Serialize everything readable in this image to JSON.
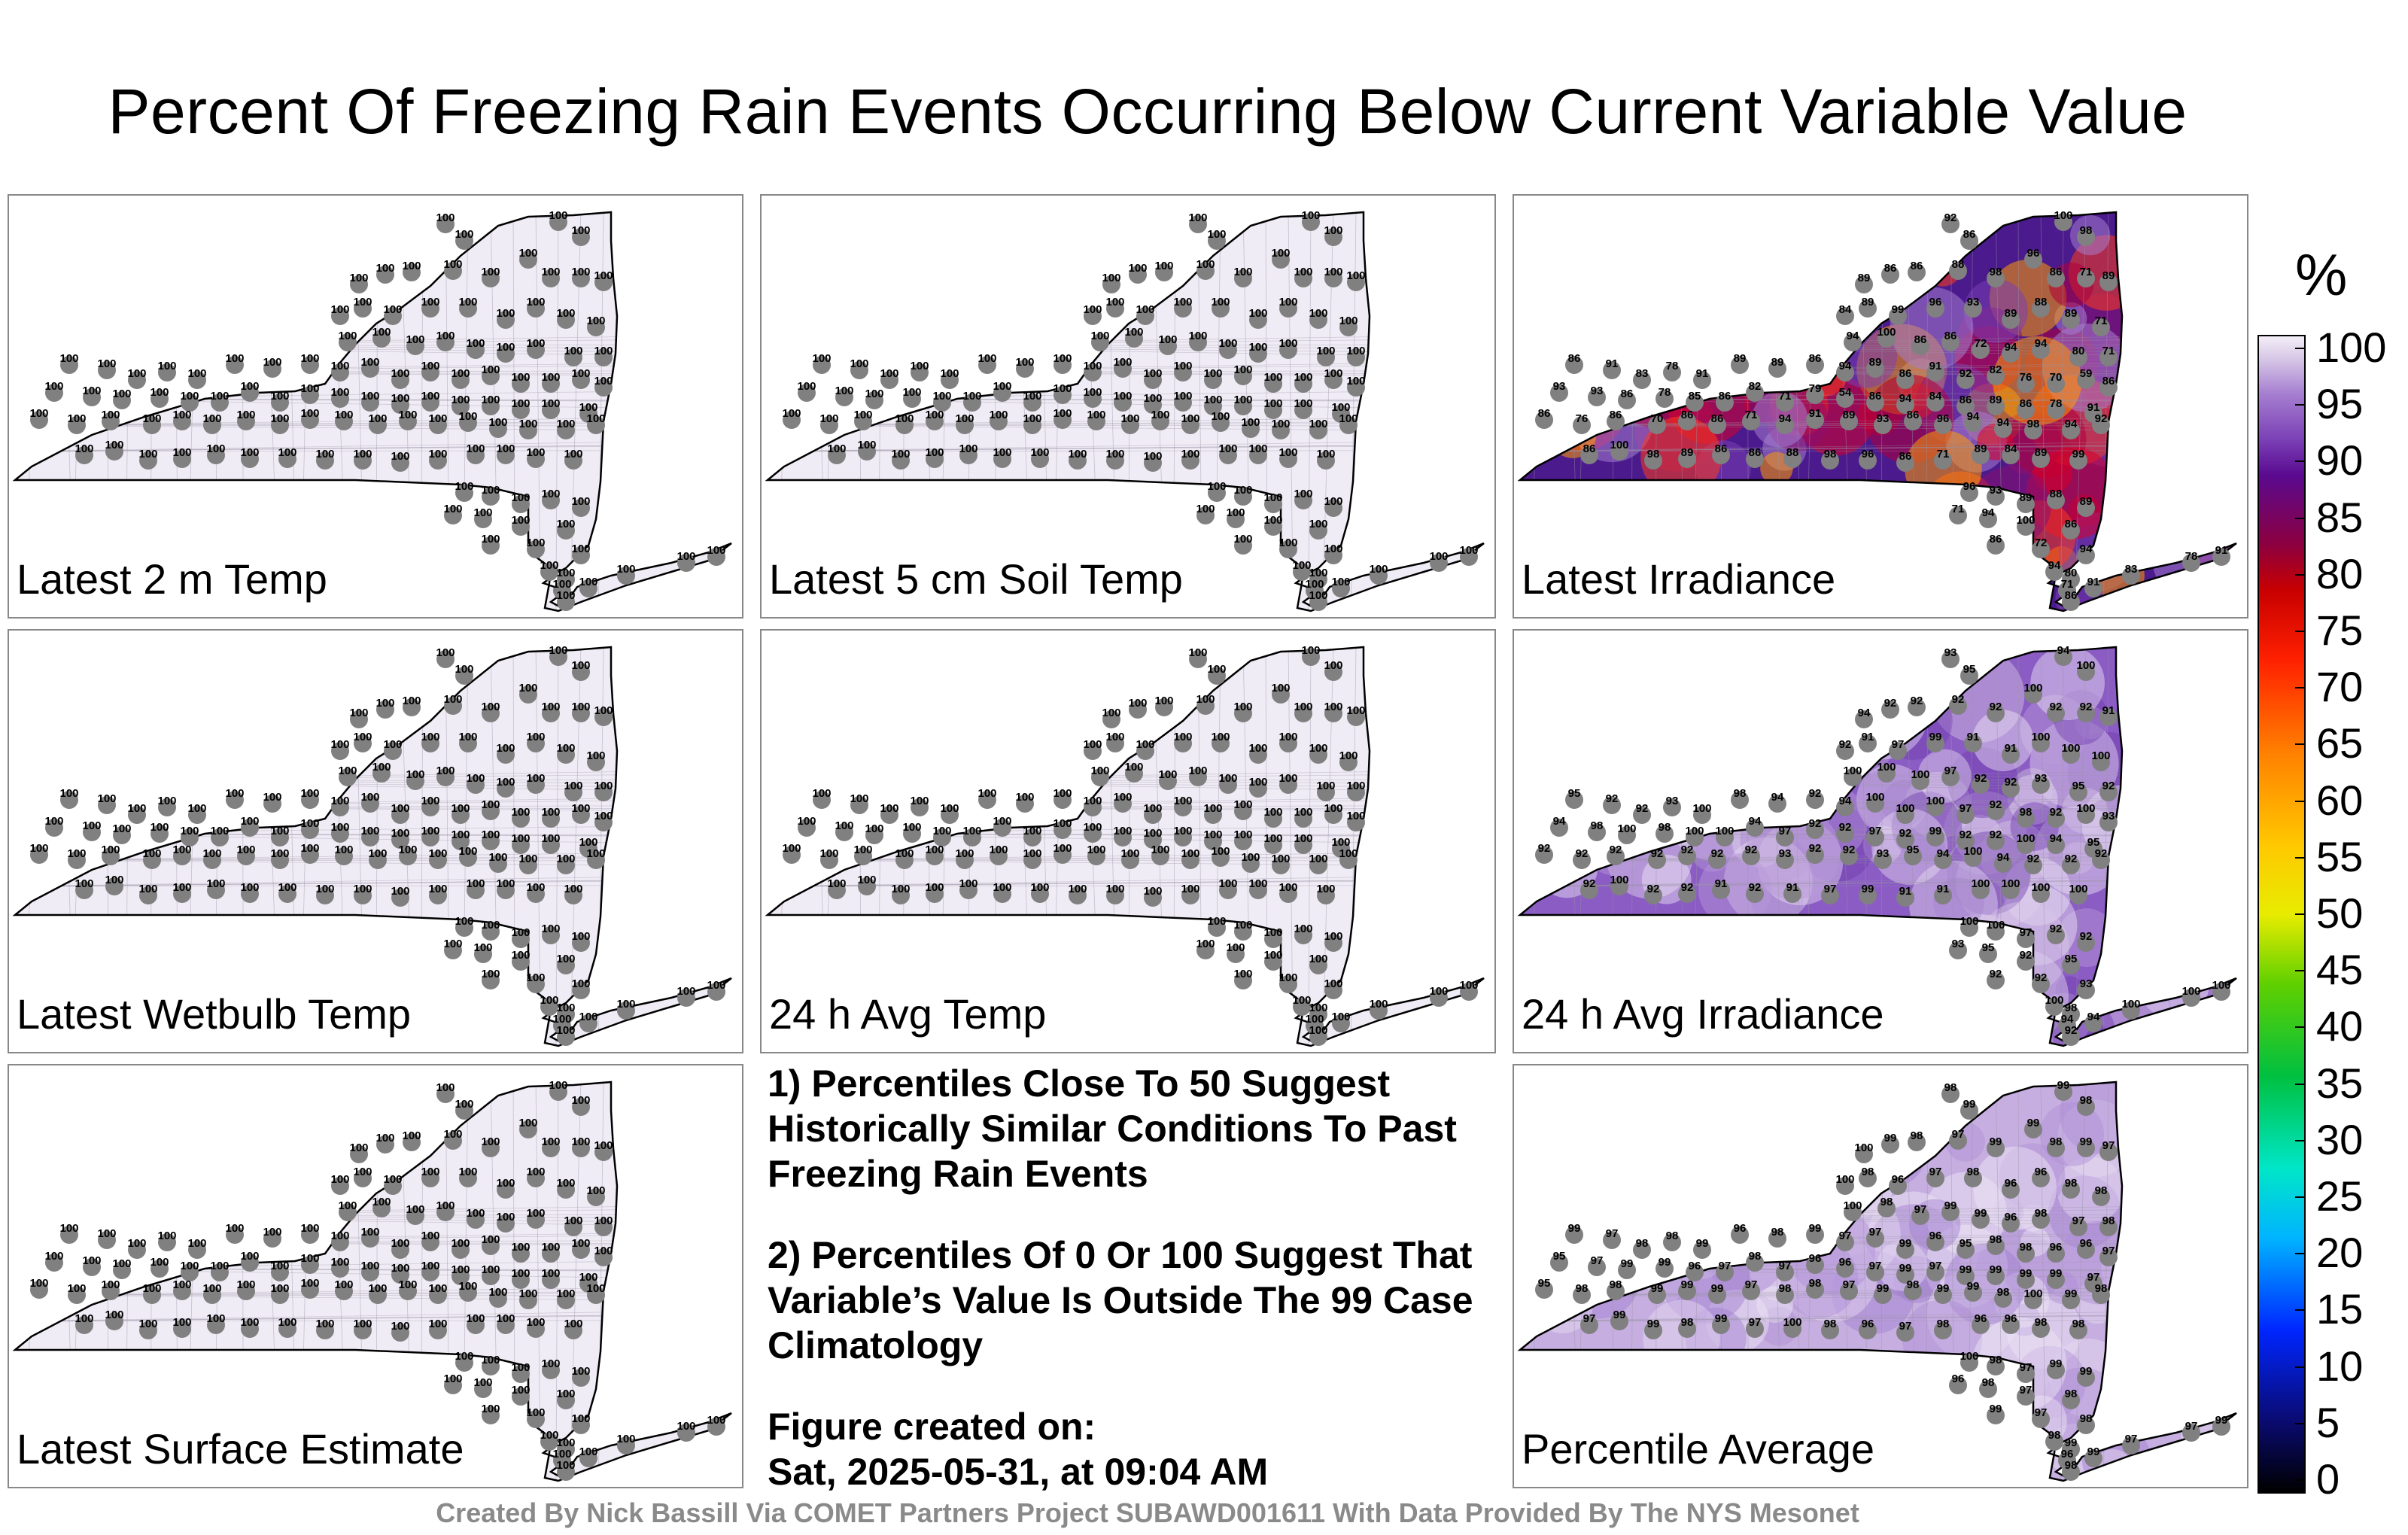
{
  "title": "Percent Of Freezing Rain Events Occurring Below Current Variable Value",
  "panels": [
    {
      "label": "Latest 2 m Temp",
      "theme": "flat",
      "values": [
        100
      ]
    },
    {
      "label": "Latest 5 cm Soil Temp",
      "theme": "flat",
      "values": [
        100
      ]
    },
    {
      "label": "Latest Irradiance",
      "theme": "hot",
      "values": [
        92,
        86,
        100,
        98,
        89,
        86,
        86,
        88,
        98,
        96,
        86,
        71,
        89,
        84,
        89,
        99,
        96,
        93,
        89,
        88,
        89,
        71,
        94,
        100,
        86,
        86,
        72,
        94,
        94,
        80,
        71,
        86,
        91,
        83,
        78,
        91,
        89,
        89,
        86,
        94,
        89,
        86,
        91,
        92,
        82,
        76,
        70,
        59,
        86,
        93,
        93,
        86,
        78,
        85,
        86,
        82,
        71,
        79,
        54,
        86,
        94,
        84,
        86,
        89,
        86,
        78,
        91,
        86,
        76,
        86,
        70,
        86,
        86,
        71,
        94,
        91,
        89,
        93,
        86,
        96,
        94,
        94,
        98,
        94
      ]
    },
    {
      "label": "Latest Wetbulb Temp",
      "theme": "flat",
      "values": [
        100
      ]
    },
    {
      "label": "24 h Avg Temp",
      "theme": "flat",
      "values": [
        100
      ]
    },
    {
      "label": "24 h Avg Irradiance",
      "theme": "mid",
      "values": [
        93,
        95,
        94,
        100,
        94,
        92,
        92,
        92,
        92,
        100,
        92,
        92,
        91,
        92,
        91,
        97,
        99,
        91,
        91,
        100,
        100,
        100,
        100,
        100,
        100,
        97,
        92,
        92,
        93,
        95,
        92,
        95,
        92,
        92,
        93,
        100,
        98,
        94,
        92,
        94,
        100,
        100,
        100,
        97,
        92,
        98,
        92,
        100,
        93,
        94,
        98,
        100,
        98,
        100,
        100,
        94,
        97,
        92,
        92,
        97,
        92,
        99,
        92,
        92,
        100,
        94,
        95,
        92,
        92,
        92,
        92,
        92,
        92,
        92,
        93,
        92,
        92
      ]
    },
    {
      "label": "Latest Surface Estimate",
      "theme": "flat",
      "values": [
        100
      ]
    },
    {
      "label": "Percentile Average",
      "theme": "light",
      "values": [
        98,
        99,
        99,
        98,
        100,
        99,
        98,
        97,
        99,
        99,
        98,
        99,
        97,
        100,
        98,
        96,
        97,
        98,
        96,
        96,
        98,
        98,
        100,
        98,
        97,
        99,
        99,
        96,
        98,
        97,
        98,
        99,
        97,
        98,
        98,
        99,
        96,
        98,
        99,
        97,
        97,
        99,
        96,
        95,
        98,
        98,
        96,
        96,
        97,
        95,
        97,
        99,
        99,
        96,
        97,
        98,
        97,
        96,
        96,
        97,
        99,
        97,
        99,
        99,
        99,
        99,
        97,
        95,
        98,
        98,
        99,
        99,
        99,
        97,
        98,
        98,
        97,
        99
      ]
    }
  ],
  "notes": [
    "1) Percentiles Close To 50 Suggest Historically Similar Conditions To Past Freezing Rain Events",
    "2) Percentiles Of 0 Or 100 Suggest That Variable’s Value Is Outside The 99 Case Climatology",
    "Figure created on:",
    "Sat, 2025-05-31, at 09:04 AM"
  ],
  "footer": "Created By Nick Bassill Via COMET Partners Project SUBAWD001611 With Data Provided By The NYS Mesonet",
  "colorbar": {
    "unit": "%",
    "ticks": [
      "100",
      "95",
      "90",
      "85",
      "80",
      "75",
      "70",
      "65",
      "60",
      "55",
      "50",
      "45",
      "40",
      "35",
      "30",
      "25",
      "20",
      "15",
      "10",
      "5",
      "0"
    ]
  },
  "colors": {
    "flat_fill": "#f0ecf5",
    "mid_fill": "#8a5cc4",
    "light_fill": "#c6afe0",
    "hot_base": "#4b1a8c",
    "station": "#808080"
  }
}
